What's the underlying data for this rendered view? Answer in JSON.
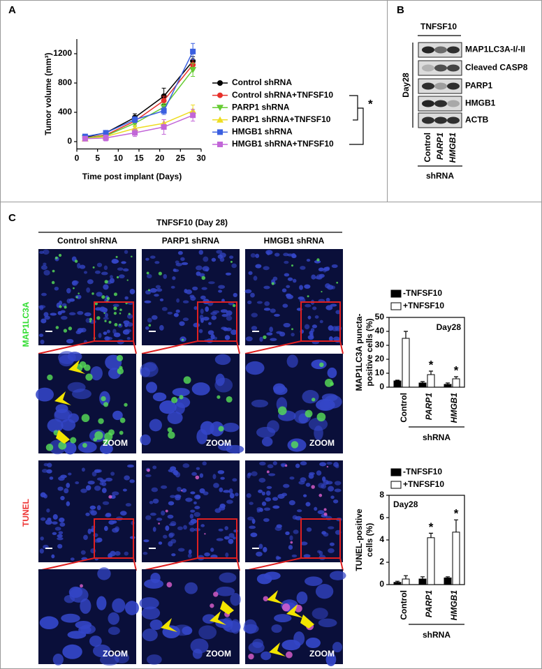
{
  "panel_labels": [
    "A",
    "B",
    "C"
  ],
  "chart_data": [
    {
      "type": "line",
      "xlabel": "Time post implant (Days)",
      "ylabel": "Tumor volume (mm³)",
      "x": [
        2,
        7,
        14,
        21,
        28
      ],
      "xlim": [
        0,
        30
      ],
      "xticks": [
        0,
        5,
        10,
        15,
        20,
        25,
        30
      ],
      "ylim": [
        -100,
        1400
      ],
      "yticks": [
        0,
        400,
        800,
        1200
      ],
      "annotation": "*",
      "series": [
        {
          "name": "Control shRNA",
          "color": "#000000",
          "marker": "circle",
          "values": [
            60,
            120,
            330,
            620,
            1100
          ],
          "errors": [
            30,
            30,
            50,
            110,
            60
          ]
        },
        {
          "name": "Control shRNA+TNFSF10",
          "color": "#e8302a",
          "marker": "circle",
          "values": [
            50,
            90,
            280,
            560,
            1050
          ],
          "errors": [
            25,
            30,
            40,
            60,
            70
          ]
        },
        {
          "name": "PARP1 shRNA",
          "color": "#66cc33",
          "marker": "triangle-down",
          "values": [
            50,
            80,
            250,
            470,
            980
          ],
          "errors": [
            20,
            30,
            40,
            50,
            90
          ]
        },
        {
          "name": "PARP1 shRNA+TNFSF10",
          "color": "#eedd22",
          "marker": "triangle-up",
          "values": [
            40,
            70,
            180,
            250,
            420
          ],
          "errors": [
            20,
            25,
            40,
            50,
            80
          ]
        },
        {
          "name": "HMGB1 shRNA",
          "color": "#3a5fe0",
          "marker": "square",
          "values": [
            70,
            120,
            300,
            420,
            1230
          ],
          "errors": [
            25,
            30,
            40,
            50,
            110
          ]
        },
        {
          "name": "HMGB1 shRNA+TNFSF10",
          "color": "#c266d8",
          "marker": "square",
          "values": [
            40,
            50,
            120,
            200,
            360
          ],
          "errors": [
            30,
            40,
            50,
            100,
            80
          ]
        }
      ]
    },
    {
      "type": "bar",
      "ylabel": [
        "MAP1LC3A puncta-",
        "positive cells (%)"
      ],
      "categories": [
        "Control",
        "PARP1",
        "HMGB1"
      ],
      "group_label": "shRNA",
      "annotation": "Day28",
      "ylim": [
        0,
        50
      ],
      "yticks": [
        0,
        10,
        20,
        30,
        40,
        50
      ],
      "significance": {
        "label": "*",
        "categories": [
          "PARP1",
          "HMGB1"
        ]
      },
      "series": [
        {
          "name": "-TNFSF10",
          "color": "#000000",
          "values": [
            4.5,
            3,
            2
          ],
          "errors": [
            0.5,
            1,
            1
          ]
        },
        {
          "name": "+TNFSF10",
          "color": "#ffffff",
          "values": [
            35,
            9,
            6
          ],
          "errors": [
            5,
            2.5,
            1.5
          ]
        }
      ]
    },
    {
      "type": "bar",
      "ylabel": [
        "TUNEL-positive",
        "cells (%)"
      ],
      "categories": [
        "Control",
        "PARP1",
        "HMGB1"
      ],
      "group_label": "shRNA",
      "annotation": "Day28",
      "ylim": [
        0,
        8
      ],
      "yticks": [
        0,
        2,
        4,
        6,
        8
      ],
      "significance": {
        "label": "*",
        "categories": [
          "PARP1",
          "HMGB1"
        ]
      },
      "series": [
        {
          "name": "-TNFSF10",
          "color": "#000000",
          "values": [
            0.2,
            0.5,
            0.6
          ],
          "errors": [
            0.1,
            0.2,
            0.1
          ]
        },
        {
          "name": "+TNFSF10",
          "color": "#ffffff",
          "values": [
            0.5,
            4.2,
            4.7
          ],
          "errors": [
            0.3,
            0.4,
            1.1
          ]
        }
      ]
    }
  ],
  "blot": {
    "treatment": "TNFSF10",
    "timepoint": "Day28",
    "bands": [
      "MAP1LC3A-I/-II",
      "Cleaved CASP8",
      "PARP1",
      "HMGB1",
      "ACTB"
    ],
    "lanes": [
      "Control",
      "PARP1",
      "HMGB1"
    ],
    "group_label": "shRNA"
  },
  "micrographs": {
    "header": "TNFSF10 (Day 28)",
    "columns": [
      "Control shRNA",
      "PARP1 shRNA",
      "HMGB1 shRNA"
    ],
    "rows": [
      "MAP1LC3A",
      "TUNEL"
    ],
    "zoom_label": "ZOOM"
  }
}
